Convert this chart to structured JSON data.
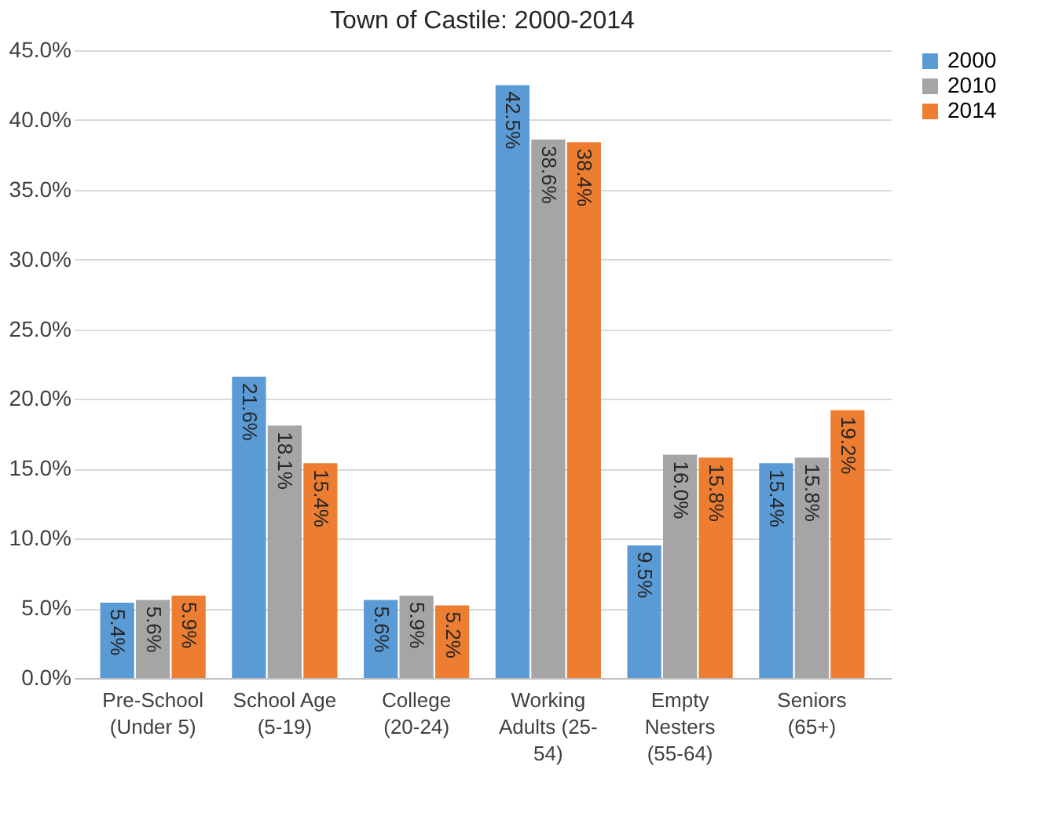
{
  "chart_data": {
    "type": "bar",
    "title": "Town of Castile: 2000-2014",
    "categories": [
      "Pre-School\n(Under 5)",
      "School Age\n(5-19)",
      "College\n(20-24)",
      "Working\nAdults (25-\n54)",
      "Empty\nNesters\n(55-64)",
      "Seniors\n(65+)"
    ],
    "series": [
      {
        "name": "2000",
        "color": "#5b9bd5",
        "values": [
          5.4,
          21.6,
          5.6,
          42.5,
          9.5,
          15.4
        ],
        "value_labels": [
          "5.4%",
          "21.6%",
          "5.6%",
          "42.5%",
          "9.5%",
          "15.4%"
        ]
      },
      {
        "name": "2010",
        "color": "#a5a5a5",
        "values": [
          5.6,
          18.1,
          5.9,
          38.6,
          16.0,
          15.8
        ],
        "value_labels": [
          "5.6%",
          "18.1%",
          "5.9%",
          "38.6%",
          "16.0%",
          "15.8%"
        ]
      },
      {
        "name": "2014",
        "color": "#ed7d31",
        "values": [
          5.9,
          15.4,
          5.2,
          38.4,
          15.8,
          19.2
        ],
        "value_labels": [
          "5.9%",
          "15.4%",
          "5.2%",
          "38.4%",
          "15.8%",
          "19.2%"
        ]
      }
    ],
    "ylim": [
      0,
      45
    ],
    "yticks": [
      {
        "value": 0,
        "label": "0.0%"
      },
      {
        "value": 5,
        "label": "5.0%"
      },
      {
        "value": 10,
        "label": "10.0%"
      },
      {
        "value": 15,
        "label": "15.0%"
      },
      {
        "value": 20,
        "label": "20.0%"
      },
      {
        "value": 25,
        "label": "25.0%"
      },
      {
        "value": 30,
        "label": "30.0%"
      },
      {
        "value": 35,
        "label": "35.0%"
      },
      {
        "value": 40,
        "label": "40.0%"
      },
      {
        "value": 45,
        "label": "45.0%"
      }
    ],
    "grid": "y",
    "legend": "right"
  }
}
